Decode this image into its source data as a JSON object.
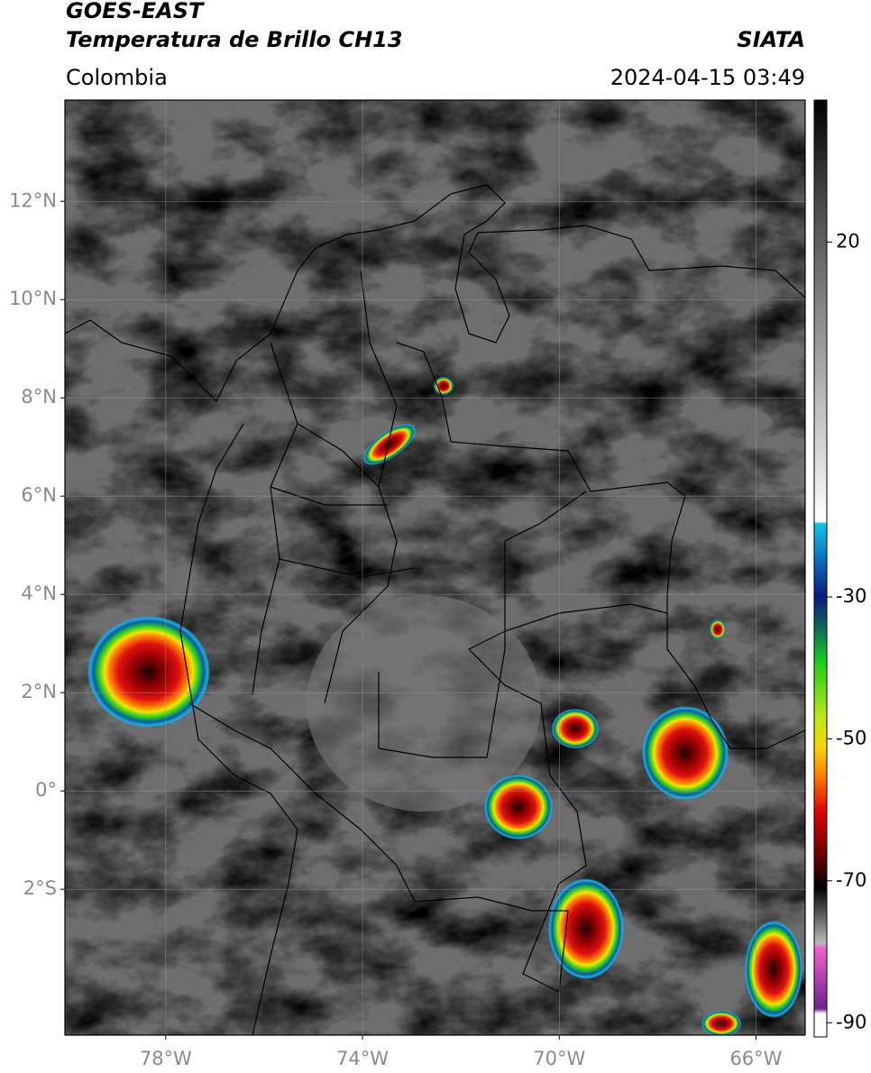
{
  "header": {
    "title": "GOES-EAST",
    "subtitle": "Temperatura de Brillo CH13",
    "source": "SIATA",
    "region": "Colombia",
    "datetime": "2024-04-15 03:49"
  },
  "map": {
    "lon_lim": [
      -80.05,
      -65
    ],
    "lat_lim": [
      -4.97,
      14.06
    ],
    "lat_ticks": [
      {
        "value": 12,
        "label": "12°N"
      },
      {
        "value": 10,
        "label": "10°N"
      },
      {
        "value": 8,
        "label": "8°N"
      },
      {
        "value": 6,
        "label": "6°N"
      },
      {
        "value": 4,
        "label": "4°N"
      },
      {
        "value": 2,
        "label": "2°N"
      },
      {
        "value": 0,
        "label": "0°"
      },
      {
        "value": -2,
        "label": "2°S"
      }
    ],
    "lon_ticks": [
      {
        "value": -78,
        "label": "78°W"
      },
      {
        "value": -74,
        "label": "74°W"
      },
      {
        "value": -70,
        "label": "70°W"
      },
      {
        "value": -66,
        "label": "66°W"
      }
    ]
  },
  "colorbar": {
    "limits": [
      -92,
      40
    ],
    "ticks": [
      20,
      -30,
      -50,
      -70,
      -90
    ]
  }
}
